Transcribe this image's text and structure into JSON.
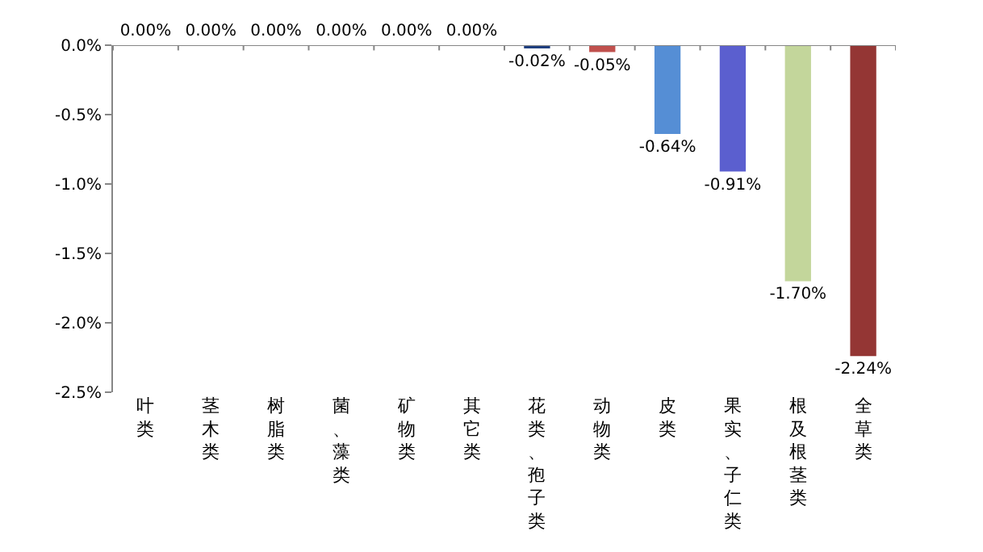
{
  "chart_data": {
    "type": "bar",
    "categories": [
      "叶类",
      "茎木类",
      "树脂类",
      "菌、藻类",
      "矿物类",
      "其它类",
      "花类、孢子类",
      "动物类",
      "皮类",
      "果实、子仁类",
      "根及根茎类",
      "全草类"
    ],
    "values": [
      0,
      0,
      0,
      0,
      0,
      0,
      -0.02,
      -0.05,
      -0.64,
      -0.91,
      -1.7,
      -2.24
    ],
    "colors": [
      "#4f81bd",
      "#4f81bd",
      "#4f81bd",
      "#4f81bd",
      "#4f81bd",
      "#4f81bd",
      "#1f3f7f",
      "#c0504d",
      "#558ed5",
      "#5b5fcf",
      "#c3d69b",
      "#943634"
    ],
    "value_labels": [
      "0.00%",
      "0.00%",
      "0.00%",
      "0.00%",
      "0.00%",
      "0.00%",
      "-0.02%",
      "-0.05%",
      "-0.64%",
      "-0.91%",
      "-1.70%",
      "-2.24%"
    ],
    "ylim": [
      -2.5,
      0
    ],
    "yticks": [
      {
        "value": 0,
        "label": "0.0%"
      },
      {
        "value": -0.5,
        "label": "-0.5%"
      },
      {
        "value": -1,
        "label": "-1.0%"
      },
      {
        "value": -1.5,
        "label": "-1.5%"
      },
      {
        "value": -2,
        "label": "-2.0%"
      },
      {
        "value": -2.5,
        "label": "-2.5%"
      }
    ],
    "grid": false
  }
}
